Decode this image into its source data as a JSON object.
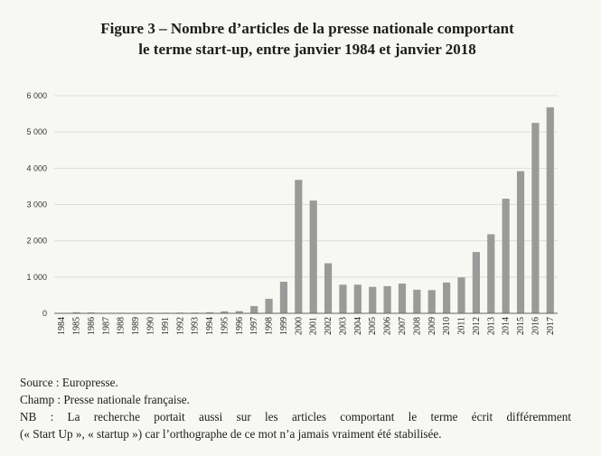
{
  "title": {
    "line1": "Figure 3 – Nombre d’articles de la presse nationale comportant",
    "line2": "le terme start-up, entre janvier 1984 et janvier 2018"
  },
  "notes": {
    "source": "Source : Europresse.",
    "champ": "Champ : Presse nationale française.",
    "nb_line1": "NB : La recherche portait aussi sur les articles comportant le terme écrit différemment",
    "nb_line2": "(« Start Up », « startup ») car l’orthographe de ce mot n’a jamais vraiment été stabilisée."
  },
  "colors": {
    "bar": "#9a9a9a",
    "grid": "#dcdcdc",
    "axis": "#666666"
  },
  "chart_data": {
    "type": "bar",
    "title": "Nombre d’articles de la presse nationale comportant le terme start-up, entre janvier 1984 et janvier 2018",
    "xlabel": "",
    "ylabel": "",
    "ylim": [
      0,
      6000
    ],
    "yticks": [
      0,
      1000,
      2000,
      3000,
      4000,
      5000,
      6000
    ],
    "ytick_labels": [
      "0",
      "1 000",
      "2 000",
      "3 000",
      "4 000",
      "5 000",
      "6 000"
    ],
    "grid": true,
    "categories": [
      "1984",
      "1985",
      "1986",
      "1987",
      "1988",
      "1989",
      "1990",
      "1991",
      "1992",
      "1993",
      "1994",
      "1995",
      "1996",
      "1997",
      "1998",
      "1999",
      "2000",
      "2001",
      "2002",
      "2003",
      "2004",
      "2005",
      "2006",
      "2007",
      "2008",
      "2009",
      "2010",
      "2011",
      "2012",
      "2013",
      "2014",
      "2015",
      "2016",
      "2017"
    ],
    "values": [
      5,
      30,
      25,
      10,
      15,
      10,
      15,
      15,
      20,
      20,
      30,
      55,
      60,
      200,
      400,
      870,
      3680,
      3110,
      1380,
      790,
      790,
      730,
      750,
      820,
      650,
      640,
      850,
      990,
      1690,
      2180,
      3160,
      3920,
      5250,
      5680
    ]
  }
}
